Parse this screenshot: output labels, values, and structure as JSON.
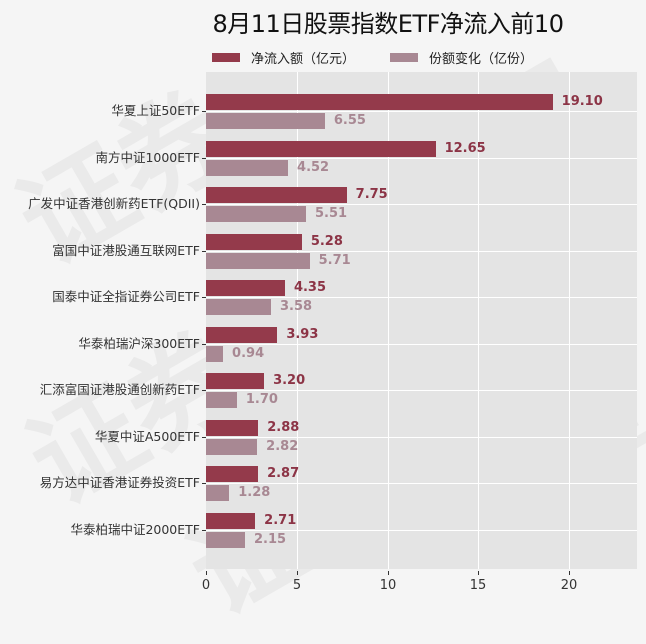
{
  "chart_data": {
    "type": "bar",
    "orientation": "horizontal",
    "title": "8月11日股票指数ETF净流入前10",
    "xlabel": "",
    "ylabel": "",
    "xlim": [
      0,
      23.7
    ],
    "xticks": [
      0,
      5,
      10,
      15,
      20
    ],
    "grid": true,
    "legend_position": "top",
    "categories": [
      "华夏上证50ETF",
      "南方中证1000ETF",
      "广发中证香港创新药ETF(QDII)",
      "富国中证港股通互联网ETF",
      "国泰中证全指证券公司ETF",
      "华泰柏瑞沪深300ETF",
      "汇添富国证港股通创新药ETF",
      "华夏中证A500ETF",
      "易方达中证香港证券投资ETF",
      "华泰柏瑞中证2000ETF"
    ],
    "series": [
      {
        "name": "净流入额（亿元）",
        "color": "#943a4b",
        "values": [
          19.1,
          12.65,
          7.75,
          5.28,
          4.35,
          3.93,
          3.2,
          2.88,
          2.87,
          2.71
        ],
        "labels": [
          "19.10",
          "12.65",
          "7.75",
          "5.28",
          "4.35",
          "3.93",
          "3.20",
          "2.88",
          "2.87",
          "2.71"
        ]
      },
      {
        "name": "份额变化（亿份）",
        "color": "#a88893",
        "values": [
          6.55,
          4.52,
          5.51,
          5.71,
          3.58,
          0.94,
          1.7,
          2.82,
          1.28,
          2.15
        ],
        "labels": [
          "6.55",
          "4.52",
          "5.51",
          "5.71",
          "3.58",
          "0.94",
          "1.70",
          "2.82",
          "1.28",
          "2.15"
        ]
      }
    ]
  },
  "colors": {
    "background": "#f5f5f5",
    "plot_background": "#e4e4e4",
    "inflow_bar": "#943a4b",
    "inflow_label": "#8c3446",
    "share_bar": "#a88893",
    "share_label": "#a88893"
  },
  "watermark_text": [
    "证券",
    "之星",
    "证券",
    "之星",
    "证券"
  ]
}
